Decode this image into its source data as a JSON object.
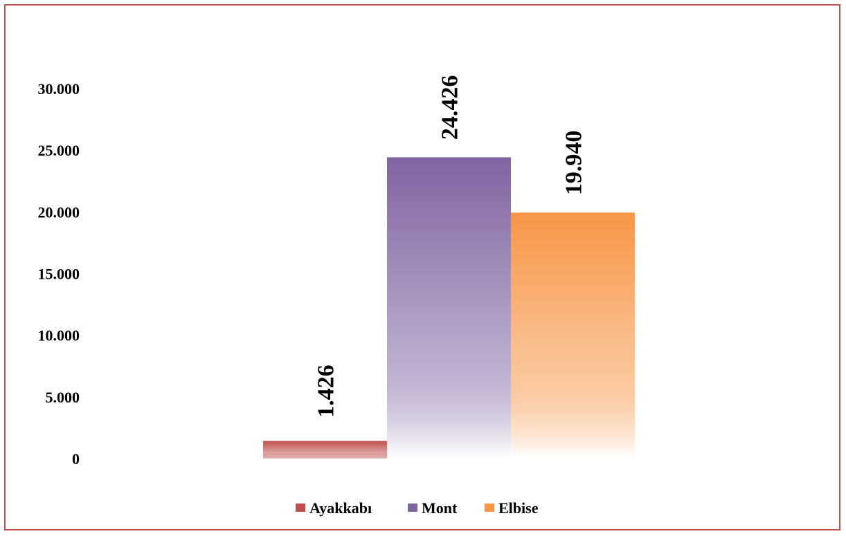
{
  "chart_data": {
    "type": "bar",
    "title": "",
    "xlabel": "",
    "ylabel": "",
    "categories": [
      ""
    ],
    "ylim": [
      0,
      30000
    ],
    "y_ticks": [
      {
        "value": 0,
        "label": "0"
      },
      {
        "value": 5000,
        "label": "5.000"
      },
      {
        "value": 10000,
        "label": "10.000"
      },
      {
        "value": 15000,
        "label": "15.000"
      },
      {
        "value": 20000,
        "label": "20.000"
      },
      {
        "value": 25000,
        "label": "25.000"
      },
      {
        "value": 30000,
        "label": "30.000"
      }
    ],
    "grid": false,
    "legend_position": "bottom",
    "series": [
      {
        "name": "Ayakkabı",
        "values": [
          1426
        ],
        "label": "1.426",
        "color": "#c0504d",
        "color_light": "#e6b9b8"
      },
      {
        "name": "Mont",
        "values": [
          24426
        ],
        "label": "24.426",
        "color": "#8064a2",
        "color_light": "#ffffff"
      },
      {
        "name": "Elbise",
        "values": [
          19940
        ],
        "label": "19.940",
        "color": "#f79646",
        "color_light": "#ffffff"
      }
    ]
  }
}
